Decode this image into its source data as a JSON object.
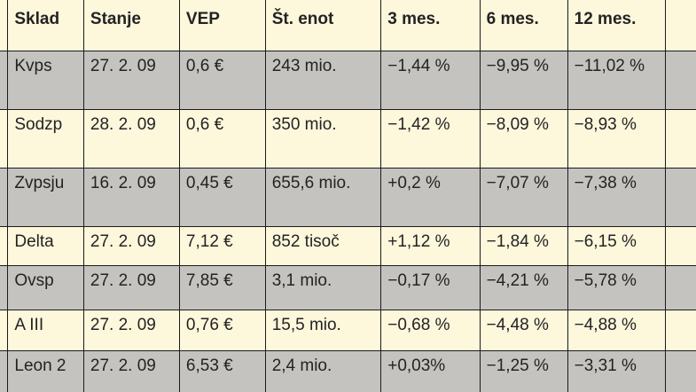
{
  "table": {
    "headers": [
      "Sklad",
      "Stanje",
      "VEP",
      "Št. enot",
      "3 mes.",
      "6 mes.",
      "12 mes."
    ],
    "rows": [
      {
        "sklad": "Kvps",
        "stanje": "27. 2. 09",
        "vep": "0,6 €",
        "enote": "243 mio.",
        "m3": "−1,44 %",
        "m6": "−9,95 %",
        "m12": "−11,02 %"
      },
      {
        "sklad": "Sodzp",
        "stanje": "28. 2. 09",
        "vep": "0,6 €",
        "enote": "350 mio.",
        "m3": "−1,42 %",
        "m6": "−8,09 %",
        "m12": "−8,93 %"
      },
      {
        "sklad": "Zvpsju",
        "stanje": "16. 2. 09",
        "vep": "0,45 €",
        "enote": "655,6 mio.",
        "m3": "+0,2 %",
        "m6": "−7,07 %",
        "m12": "−7,38 %"
      },
      {
        "sklad": "Delta",
        "stanje": "27. 2. 09",
        "vep": "7,12 €",
        "enote": "852 tisoč",
        "m3": "+1,12 %",
        "m6": "−1,84 %",
        "m12": "−6,15 %"
      },
      {
        "sklad": "Ovsp",
        "stanje": "27. 2. 09",
        "vep": "7,85 €",
        "enote": "3,1 mio.",
        "m3": "−0,17 %",
        "m6": "−4,21 %",
        "m12": "−5,78 %"
      },
      {
        "sklad": "A III",
        "stanje": "27. 2. 09",
        "vep": "0,76 €",
        "enote": "15,5 mio.",
        "m3": "−0,68 %",
        "m6": "−4,48 %",
        "m12": "−4,88 %"
      },
      {
        "sklad": "Leon 2",
        "stanje": "27. 2. 09",
        "vep": "6,53 €",
        "enote": "2,4 mio.",
        "m3": "+0,03%",
        "m6": "−1,25 %",
        "m12": "−3,31 %"
      }
    ]
  },
  "colors": {
    "gray_row": "#c4c3bf",
    "cream_row": "#fdf7dc",
    "border": "#1b1b1b"
  }
}
